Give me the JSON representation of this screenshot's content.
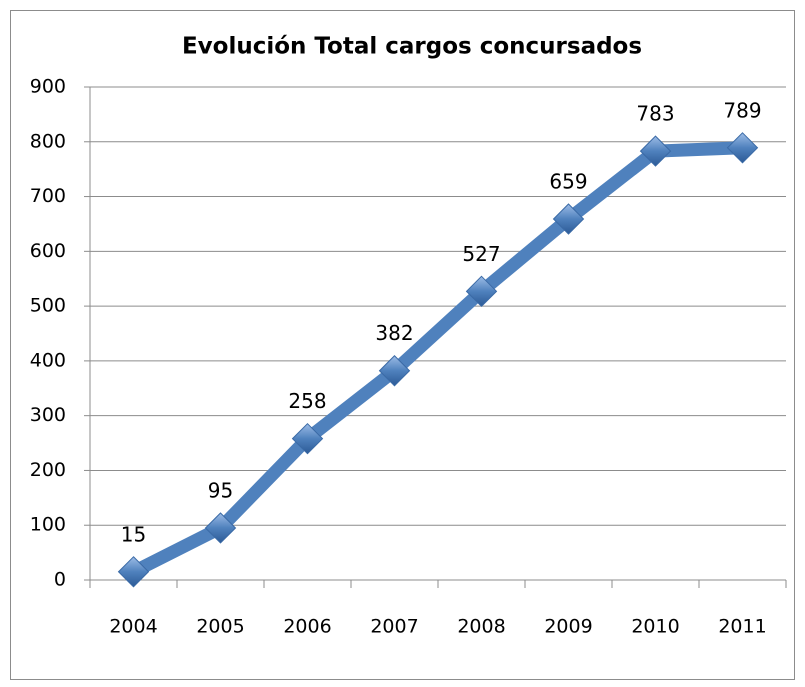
{
  "chart_data": {
    "type": "line",
    "title": "Evolución  Total cargos concursados",
    "categories": [
      "2004",
      "2005",
      "2006",
      "2007",
      "2008",
      "2009",
      "2010",
      "2011"
    ],
    "series": [
      {
        "name": "Total cargos concursados",
        "color": "#4f81bd",
        "values": [
          15,
          95,
          258,
          382,
          527,
          659,
          783,
          789
        ]
      }
    ],
    "ylim": [
      0,
      900
    ],
    "yticks": [
      0,
      100,
      200,
      300,
      400,
      500,
      600,
      700,
      800,
      900
    ],
    "grid": true,
    "legend": false
  }
}
